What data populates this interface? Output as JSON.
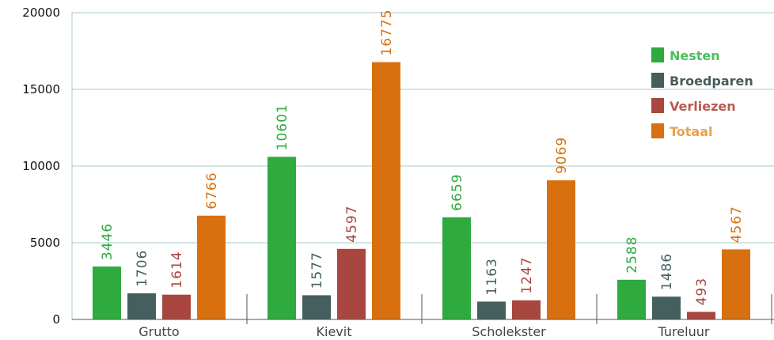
{
  "chart_data": {
    "type": "bar",
    "categories": [
      "Grutto",
      "Kievit",
      "Scholekster",
      "Tureluur"
    ],
    "series": [
      {
        "name": "Nesten",
        "values": [
          3446,
          10601,
          6659,
          2588
        ],
        "color": "#2eaa3f"
      },
      {
        "name": "Broedparen",
        "values": [
          1706,
          1577,
          1163,
          1486
        ],
        "color": "#455e5e"
      },
      {
        "name": "Verliezen",
        "values": [
          1614,
          4597,
          1247,
          493
        ],
        "color": "#a8463f"
      },
      {
        "name": "Totaal",
        "values": [
          6766,
          16775,
          9069,
          4567
        ],
        "color": "#d9700f"
      }
    ],
    "label_colors": [
      "#2eaa3f",
      "#455e5e",
      "#a8463f",
      "#d9700f"
    ],
    "legend_text_colors": [
      "#4cbf5a",
      "#4a5a5a",
      "#b85a50",
      "#e8a24f"
    ],
    "ylim": [
      0,
      20000
    ],
    "yticks": [
      0,
      5000,
      10000,
      15000,
      20000
    ],
    "grid": true,
    "legend_position": "top-right"
  }
}
